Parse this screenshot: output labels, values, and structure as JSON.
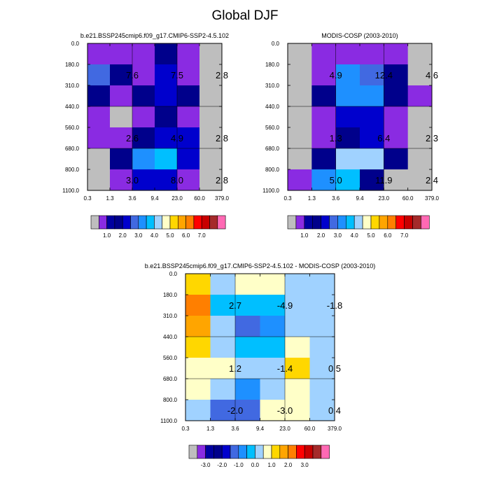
{
  "figure": {
    "title": "Global DJF"
  },
  "palette": {
    "colors": [
      "#bebebe",
      "#8a2be2",
      "#0000a0",
      "#00008b",
      "#0000cd",
      "#4169e1",
      "#1e90ff",
      "#00bfff",
      "#a0d2ff",
      "#ffffc8",
      "#ffd700",
      "#ffa500",
      "#ff7f00",
      "#ff0000",
      "#c80000",
      "#a52a2a",
      "#ff69b4"
    ]
  },
  "chart_data": [
    {
      "type": "heatmap",
      "title": "b.e21.BSSP245cmip6.f09_g17.CMIP6-SSP2-4.5.102",
      "x_ticks": [
        "0.3",
        "1.3",
        "3.6",
        "9.4",
        "23.0",
        "60.0",
        "379.0"
      ],
      "y_ticks": [
        "0.0",
        "180.0",
        "310.0",
        "440.0",
        "560.0",
        "680.0",
        "800.0",
        "1100.0"
      ],
      "cells": [
        [
          1,
          1,
          1,
          3,
          1,
          0
        ],
        [
          5,
          3,
          1,
          4,
          1,
          0
        ],
        [
          3,
          1,
          3,
          4,
          3,
          0
        ],
        [
          1,
          0,
          1,
          3,
          1,
          0
        ],
        [
          1,
          1,
          3,
          4,
          4,
          0
        ],
        [
          0,
          3,
          6,
          7,
          4,
          0
        ],
        [
          0,
          1,
          4,
          4,
          1,
          0
        ]
      ],
      "labels": [
        {
          "text": "7.6",
          "col": 1,
          "row": 1
        },
        {
          "text": "7.5",
          "col": 3,
          "row": 1
        },
        {
          "text": "2.8",
          "col": 5,
          "row": 1
        },
        {
          "text": "2.6",
          "col": 1,
          "row": 4
        },
        {
          "text": "4.9",
          "col": 3,
          "row": 4
        },
        {
          "text": "2.8",
          "col": 5,
          "row": 4
        },
        {
          "text": "3.0",
          "col": 1,
          "row": 6
        },
        {
          "text": "8.0",
          "col": 3,
          "row": 6
        },
        {
          "text": "2.8",
          "col": 5,
          "row": 6
        }
      ],
      "colorbar": {
        "colors": [
          "#bebebe",
          "#8a2be2",
          "#0000a0",
          "#00008b",
          "#0000cd",
          "#4169e1",
          "#1e90ff",
          "#00bfff",
          "#a0d2ff",
          "#ffffc8",
          "#ffd700",
          "#ffa500",
          "#ff7f00",
          "#ff0000",
          "#c80000",
          "#a52a2a",
          "#ff69b4"
        ],
        "labels": [
          {
            "text": "1.0",
            "after": 2
          },
          {
            "text": "2.0",
            "after": 4
          },
          {
            "text": "3.0",
            "after": 6
          },
          {
            "text": "4.0",
            "after": 8
          },
          {
            "text": "5.0",
            "after": 10
          },
          {
            "text": "6.0",
            "after": 12
          },
          {
            "text": "7.0",
            "after": 14
          }
        ]
      }
    },
    {
      "type": "heatmap",
      "title": "MODIS-COSP (2003-2010)",
      "x_ticks": [
        "0.3",
        "1.3",
        "3.6",
        "9.4",
        "23.0",
        "60.0",
        "379.0"
      ],
      "y_ticks": [
        "0.0",
        "180.0",
        "310.0",
        "440.0",
        "560.0",
        "680.0",
        "800.0",
        "1100.0"
      ],
      "cells": [
        [
          0,
          1,
          1,
          1,
          1,
          0
        ],
        [
          0,
          1,
          6,
          5,
          3,
          0
        ],
        [
          0,
          3,
          6,
          6,
          3,
          1
        ],
        [
          0,
          1,
          4,
          4,
          1,
          0
        ],
        [
          0,
          1,
          3,
          4,
          1,
          0
        ],
        [
          0,
          3,
          8,
          8,
          3,
          0
        ],
        [
          1,
          6,
          7,
          3,
          0,
          0
        ]
      ],
      "labels": [
        {
          "text": "4.9",
          "col": 1,
          "row": 1
        },
        {
          "text": "12.4",
          "col": 3,
          "row": 1
        },
        {
          "text": "4.6",
          "col": 5,
          "row": 1
        },
        {
          "text": "1.3",
          "col": 1,
          "row": 4
        },
        {
          "text": "6.4",
          "col": 3,
          "row": 4
        },
        {
          "text": "2.3",
          "col": 5,
          "row": 4
        },
        {
          "text": "5.0",
          "col": 1,
          "row": 6
        },
        {
          "text": "11.9",
          "col": 3,
          "row": 6
        },
        {
          "text": "2.4",
          "col": 5,
          "row": 6
        }
      ],
      "colorbar": {
        "colors": [
          "#bebebe",
          "#8a2be2",
          "#0000a0",
          "#00008b",
          "#0000cd",
          "#4169e1",
          "#1e90ff",
          "#00bfff",
          "#a0d2ff",
          "#ffffc8",
          "#ffd700",
          "#ffa500",
          "#ff7f00",
          "#ff0000",
          "#c80000",
          "#a52a2a",
          "#ff69b4"
        ],
        "labels": [
          {
            "text": "1.0",
            "after": 2
          },
          {
            "text": "2.0",
            "after": 4
          },
          {
            "text": "3.0",
            "after": 6
          },
          {
            "text": "4.0",
            "after": 8
          },
          {
            "text": "5.0",
            "after": 10
          },
          {
            "text": "6.0",
            "after": 12
          },
          {
            "text": "7.0",
            "after": 14
          }
        ]
      }
    },
    {
      "type": "heatmap",
      "title": "b.e21.BSSP245cmip6.f09_g17.CMIP6-SSP2-4.5.102 - MODIS-COSP (2003-2010)",
      "x_ticks": [
        "0.3",
        "1.3",
        "3.6",
        "9.4",
        "23.0",
        "60.0",
        "379.0"
      ],
      "y_ticks": [
        "0.0",
        "180.0",
        "310.0",
        "440.0",
        "560.0",
        "680.0",
        "800.0",
        "1100.0"
      ],
      "cells": [
        [
          10,
          8,
          9,
          9,
          8,
          8
        ],
        [
          12,
          7,
          7,
          7,
          8,
          8
        ],
        [
          11,
          8,
          5,
          6,
          8,
          8
        ],
        [
          10,
          8,
          7,
          7,
          9,
          8
        ],
        [
          9,
          9,
          8,
          8,
          10,
          8
        ],
        [
          9,
          8,
          6,
          8,
          9,
          8
        ],
        [
          8,
          5,
          5,
          9,
          9,
          8
        ]
      ],
      "labels": [
        {
          "text": "2.7",
          "col": 1,
          "row": 1
        },
        {
          "text": "-4.9",
          "col": 3,
          "row": 1
        },
        {
          "text": "-1.8",
          "col": 5,
          "row": 1
        },
        {
          "text": "1.2",
          "col": 1,
          "row": 4
        },
        {
          "text": "-1.4",
          "col": 3,
          "row": 4
        },
        {
          "text": "0.5",
          "col": 5,
          "row": 4
        },
        {
          "text": "-2.0",
          "col": 1,
          "row": 6
        },
        {
          "text": "-3.0",
          "col": 3,
          "row": 6
        },
        {
          "text": "0.4",
          "col": 5,
          "row": 6
        }
      ],
      "colorbar": {
        "colors": [
          "#bebebe",
          "#8a2be2",
          "#0000a0",
          "#00008b",
          "#0000cd",
          "#4169e1",
          "#1e90ff",
          "#00bfff",
          "#a0d2ff",
          "#ffffc8",
          "#ffd700",
          "#ffa500",
          "#ff7f00",
          "#ff0000",
          "#c80000",
          "#a52a2a",
          "#ff69b4"
        ],
        "labels": [
          {
            "text": "-3.0",
            "after": 2
          },
          {
            "text": "-2.0",
            "after": 4
          },
          {
            "text": "-1.0",
            "after": 6
          },
          {
            "text": "0.0",
            "after": 8
          },
          {
            "text": "1.0",
            "after": 10
          },
          {
            "text": "2.0",
            "after": 12
          },
          {
            "text": "3.0",
            "after": 14
          }
        ]
      }
    }
  ]
}
